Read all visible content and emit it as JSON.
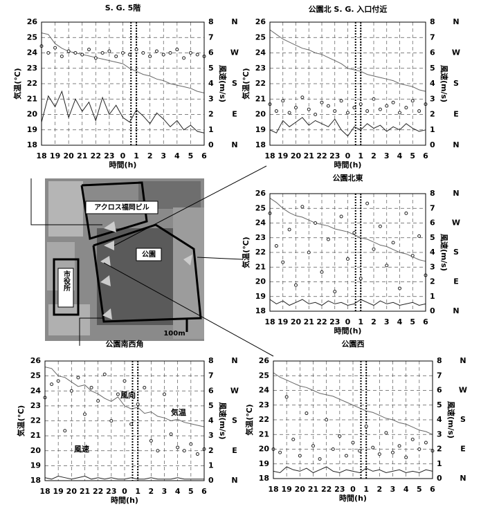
{
  "chart_data": [
    {
      "type": "line",
      "title": "S. G. 5階",
      "xlabel": "時間(h)",
      "ylabel": "気温(℃)",
      "y2label": "風速(m/s)",
      "x": [
        18,
        18.5,
        19,
        19.5,
        20,
        20.5,
        21,
        21.5,
        22,
        22.5,
        23,
        23.5,
        24,
        24.5,
        25,
        25.5,
        26,
        26.5,
        27,
        27.5,
        28,
        28.5,
        29,
        29.5,
        30
      ],
      "xlim": [
        18,
        30
      ],
      "xticks": [
        18,
        19,
        20,
        21,
        22,
        23,
        {
          "value": 24,
          "label": "0"
        },
        {
          "value": 25,
          "label": "1"
        },
        {
          "value": 26,
          "label": "2"
        },
        {
          "value": 27,
          "label": "3"
        },
        {
          "value": 28,
          "label": "4"
        },
        {
          "value": 29,
          "label": "5"
        },
        {
          "value": 30,
          "label": "6"
        }
      ],
      "ylim": [
        18,
        26
      ],
      "yticks": [
        18,
        19,
        20,
        21,
        22,
        23,
        24,
        25,
        26
      ],
      "y2lim": [
        0,
        8
      ],
      "y2ticks": [
        0,
        1,
        2,
        3,
        4,
        5,
        6,
        7,
        8
      ],
      "y3lim": [
        0,
        360
      ],
      "y3ticks": [
        {
          "value": 0,
          "label": "N"
        },
        {
          "value": 90,
          "label": "E"
        },
        {
          "value": 180,
          "label": "S"
        },
        {
          "value": 270,
          "label": "W"
        },
        {
          "value": 360,
          "label": "N"
        }
      ],
      "grid": true,
      "highlight_x": [
        24.6,
        25.0
      ],
      "series": [
        {
          "type": "line",
          "color": "#666666",
          "values": [
            25.3,
            25.2,
            24.6,
            24.3,
            24.1,
            24.0,
            23.9,
            23.8,
            23.7,
            23.6,
            23.5,
            23.4,
            23.3,
            23.0,
            22.8,
            22.6,
            22.5,
            22.3,
            22.2,
            22.0,
            21.9,
            21.8,
            21.7,
            21.5,
            21.4
          ]
        },
        {
          "type": "line",
          "axis": "y2",
          "color": "#222222",
          "values": [
            1.5,
            3.2,
            2.5,
            3.5,
            1.8,
            3.0,
            2.2,
            2.8,
            1.6,
            3.1,
            2.0,
            2.6,
            1.8,
            1.5,
            2.3,
            1.9,
            1.4,
            2.1,
            1.7,
            1.2,
            1.6,
            1.0,
            1.3,
            0.9,
            0.8
          ]
        },
        {
          "type": "scatter",
          "axis": "y3",
          "color": "#222222",
          "values": [
            290,
            270,
            285,
            260,
            275,
            270,
            265,
            280,
            255,
            270,
            275,
            260,
            270,
            265,
            280,
            270,
            260,
            275,
            265,
            270,
            280,
            255,
            270,
            265,
            260
          ]
        }
      ]
    },
    {
      "type": "line",
      "title": "公園北 S. G. 入口付近",
      "xlabel": "時間(h)",
      "ylabel": "気温(℃)",
      "y2label": "風速(m/s)",
      "x": [
        18,
        18.5,
        19,
        19.5,
        20,
        20.5,
        21,
        21.5,
        22,
        22.5,
        23,
        23.5,
        24,
        24.5,
        25,
        25.5,
        26,
        26.5,
        27,
        27.5,
        28,
        28.5,
        29,
        29.5,
        30
      ],
      "xlim": [
        18,
        30
      ],
      "xticks": [
        18,
        19,
        20,
        21,
        22,
        23,
        {
          "value": 24,
          "label": "0"
        },
        {
          "value": 25,
          "label": "1"
        },
        {
          "value": 26,
          "label": "2"
        },
        {
          "value": 27,
          "label": "3"
        },
        {
          "value": 28,
          "label": "4"
        },
        {
          "value": 29,
          "label": "5"
        },
        {
          "value": 30,
          "label": "6"
        }
      ],
      "ylim": [
        18,
        26
      ],
      "yticks": [
        18,
        19,
        20,
        21,
        22,
        23,
        24,
        25,
        26
      ],
      "y2lim": [
        0,
        8
      ],
      "y2ticks": [
        0,
        1,
        2,
        3,
        4,
        5,
        6,
        7,
        8
      ],
      "y3lim": [
        0,
        360
      ],
      "y3ticks": [
        {
          "value": 0,
          "label": "N"
        },
        {
          "value": 90,
          "label": "E"
        },
        {
          "value": 180,
          "label": "S"
        },
        {
          "value": 270,
          "label": "W"
        },
        {
          "value": 360,
          "label": "N"
        }
      ],
      "grid": true,
      "highlight_x": [
        24.6,
        25.0
      ],
      "series": [
        {
          "type": "line",
          "color": "#666666",
          "values": [
            25.5,
            25.2,
            24.9,
            24.7,
            24.5,
            24.3,
            24.2,
            24.0,
            23.9,
            23.7,
            23.5,
            23.3,
            23.0,
            22.9,
            22.8,
            22.6,
            22.5,
            22.4,
            22.3,
            22.2,
            22.0,
            21.9,
            21.8,
            21.6,
            21.5
          ]
        },
        {
          "type": "line",
          "axis": "y2",
          "color": "#222222",
          "values": [
            1.0,
            0.8,
            1.6,
            1.2,
            1.5,
            1.8,
            1.3,
            1.6,
            1.4,
            1.2,
            1.7,
            1.0,
            0.6,
            1.2,
            1.0,
            1.4,
            1.1,
            1.3,
            0.9,
            1.2,
            1.0,
            1.4,
            1.1,
            0.9,
            1.0
          ]
        },
        {
          "type": "scatter",
          "axis": "y3",
          "color": "#222222",
          "values": [
            120,
            100,
            130,
            95,
            110,
            140,
            105,
            90,
            125,
            115,
            100,
            130,
            95,
            110,
            120,
            100,
            135,
            105,
            115,
            125,
            95,
            110,
            130,
            100,
            120
          ]
        }
      ]
    },
    {
      "type": "line",
      "title": "公園北東",
      "xlabel": "時間(h)",
      "ylabel": "気温(℃)",
      "y2label": "風速(m/s)",
      "x": [
        18,
        18.5,
        19,
        19.5,
        20,
        20.5,
        21,
        21.5,
        22,
        22.5,
        23,
        23.5,
        24,
        24.5,
        25,
        25.5,
        26,
        26.5,
        27,
        27.5,
        28,
        28.5,
        29,
        29.5,
        30
      ],
      "xlim": [
        18,
        30
      ],
      "xticks": [
        18,
        19,
        20,
        21,
        22,
        23,
        {
          "value": 24,
          "label": "0"
        },
        {
          "value": 25,
          "label": "1"
        },
        {
          "value": 26,
          "label": "2"
        },
        {
          "value": 27,
          "label": "3"
        },
        {
          "value": 28,
          "label": "4"
        },
        {
          "value": 29,
          "label": "5"
        },
        {
          "value": 30,
          "label": "6"
        }
      ],
      "ylim": [
        18,
        26
      ],
      "yticks": [
        18,
        19,
        20,
        21,
        22,
        23,
        24,
        25,
        26
      ],
      "y2lim": [
        0,
        8
      ],
      "y2ticks": [
        0,
        1,
        2,
        3,
        4,
        5,
        6,
        7,
        8
      ],
      "y3lim": [
        0,
        360
      ],
      "y3ticks": [
        {
          "value": 0,
          "label": "N"
        },
        {
          "value": 90,
          "label": "E"
        },
        {
          "value": 180,
          "label": "S"
        },
        {
          "value": 270,
          "label": "W"
        },
        {
          "value": 360,
          "label": "N"
        }
      ],
      "grid": true,
      "highlight_x": [
        24.6,
        25.0
      ],
      "series": [
        {
          "type": "line",
          "color": "#666666",
          "values": [
            25.7,
            25.4,
            25.0,
            24.7,
            24.5,
            24.4,
            24.2,
            24.0,
            23.9,
            23.8,
            23.6,
            23.5,
            23.4,
            23.2,
            23.0,
            22.9,
            22.7,
            22.5,
            22.4,
            22.2,
            22.0,
            21.9,
            21.7,
            21.5,
            21.4
          ]
        },
        {
          "type": "line",
          "axis": "y2",
          "color": "#222222",
          "values": [
            0.8,
            0.5,
            0.7,
            0.4,
            0.6,
            0.8,
            0.5,
            0.6,
            0.4,
            0.7,
            0.5,
            0.6,
            0.4,
            0.5,
            0.8,
            0.6,
            0.4,
            0.7,
            0.5,
            0.6,
            0.4,
            0.5,
            0.6,
            0.4,
            0.5
          ]
        },
        {
          "type": "scatter",
          "axis": "y3",
          "color": "#222222",
          "values": [
            300,
            200,
            150,
            250,
            80,
            320,
            180,
            270,
            120,
            220,
            60,
            290,
            160,
            240,
            100,
            330,
            190,
            260,
            140,
            210,
            70,
            300,
            170,
            230,
            110
          ]
        }
      ]
    },
    {
      "type": "line",
      "title": "公園南西角",
      "xlabel": "時間(h)",
      "ylabel": "気温(℃)",
      "y2label": "風速(m/s)",
      "annotations": [
        "風向",
        "気温",
        "風速"
      ],
      "x": [
        18,
        18.5,
        19,
        19.5,
        20,
        20.5,
        21,
        21.5,
        22,
        22.5,
        23,
        23.5,
        24,
        24.5,
        25,
        25.5,
        26,
        26.5,
        27,
        27.5,
        28,
        28.5,
        29,
        29.5,
        30
      ],
      "xlim": [
        18,
        30
      ],
      "xticks": [
        18,
        19,
        20,
        21,
        22,
        23,
        {
          "value": 24,
          "label": "0"
        },
        {
          "value": 25,
          "label": "1"
        },
        {
          "value": 26,
          "label": "2"
        },
        {
          "value": 27,
          "label": "3"
        },
        {
          "value": 28,
          "label": "4"
        },
        {
          "value": 29,
          "label": "5"
        },
        {
          "value": 30,
          "label": "6"
        }
      ],
      "ylim": [
        18,
        26
      ],
      "yticks": [
        18,
        19,
        20,
        21,
        22,
        23,
        24,
        25,
        26
      ],
      "y2lim": [
        0,
        8
      ],
      "y2ticks": [
        0,
        1,
        2,
        3,
        4,
        5,
        6,
        7,
        8
      ],
      "y3lim": [
        0,
        360
      ],
      "y3ticks": [
        {
          "value": 0,
          "label": "N"
        },
        {
          "value": 90,
          "label": "E"
        },
        {
          "value": 180,
          "label": "S"
        },
        {
          "value": 270,
          "label": "W"
        },
        {
          "value": 360,
          "label": "N"
        }
      ],
      "grid": true,
      "highlight_x": [
        24.6,
        25.0
      ],
      "series": [
        {
          "type": "line",
          "color": "#666666",
          "values": [
            25.6,
            25.5,
            25.0,
            24.9,
            24.6,
            24.3,
            24.4,
            24.0,
            23.8,
            23.5,
            23.3,
            23.6,
            23.0,
            22.8,
            22.9,
            22.5,
            22.6,
            22.3,
            22.2,
            22.0,
            22.1,
            21.9,
            21.8,
            21.7,
            21.6
          ]
        },
        {
          "type": "line",
          "axis": "y2",
          "color": "#222222",
          "values": [
            0.2,
            0.1,
            0.3,
            0.2,
            0.1,
            0.2,
            0.3,
            0.1,
            0.2,
            0.1,
            0.2,
            0.1,
            0.1,
            0.2,
            0.1,
            0.1,
            0.2,
            0.1,
            0.1,
            0.1,
            0.2,
            0.1,
            0.1,
            0.1,
            0.1
          ]
        },
        {
          "type": "scatter",
          "axis": "y3",
          "color": "#222222",
          "values": [
            250,
            290,
            300,
            150,
            270,
            310,
            200,
            280,
            240,
            320,
            180,
            260,
            300,
            170,
            230,
            280,
            120,
            90,
            260,
            140,
            100,
            90,
            110,
            80,
            95
          ]
        }
      ]
    },
    {
      "type": "line",
      "title": "公園西",
      "xlabel": "時間(h)",
      "ylabel": "気温(℃)",
      "y2label": "風速(m/s)",
      "x": [
        18,
        18.5,
        19,
        19.5,
        20,
        20.5,
        21,
        21.5,
        22,
        22.5,
        23,
        23.5,
        24,
        24.5,
        25,
        25.5,
        26,
        26.5,
        27,
        27.5,
        28,
        28.5,
        29,
        29.5,
        30
      ],
      "xlim": [
        18,
        30
      ],
      "xticks": [
        18,
        19,
        20,
        21,
        22,
        23,
        {
          "value": 24,
          "label": "0"
        },
        {
          "value": 25,
          "label": "1"
        },
        {
          "value": 26,
          "label": "2"
        },
        {
          "value": 27,
          "label": "3"
        },
        {
          "value": 28,
          "label": "4"
        },
        {
          "value": 29,
          "label": "5"
        },
        {
          "value": 30,
          "label": "6"
        }
      ],
      "ylim": [
        18,
        26
      ],
      "yticks": [
        18,
        19,
        20,
        21,
        22,
        23,
        24,
        25,
        26
      ],
      "y2lim": [
        0,
        8
      ],
      "y2ticks": [
        0,
        1,
        2,
        3,
        4,
        5,
        6,
        7,
        8
      ],
      "y3lim": [
        0,
        360
      ],
      "y3ticks": [
        {
          "value": 0,
          "label": "N"
        },
        {
          "value": 90,
          "label": "E"
        },
        {
          "value": 180,
          "label": "S"
        },
        {
          "value": 270,
          "label": "W"
        },
        {
          "value": 360,
          "label": "N"
        }
      ],
      "grid": true,
      "highlight_x": [
        24.6,
        25.0
      ],
      "series": [
        {
          "type": "line",
          "color": "#666666",
          "values": [
            25.2,
            24.9,
            24.7,
            24.5,
            24.3,
            24.2,
            24.0,
            23.8,
            23.7,
            23.6,
            23.4,
            23.2,
            23.0,
            22.8,
            22.6,
            22.5,
            22.3,
            22.1,
            22.0,
            21.8,
            21.7,
            21.5,
            21.3,
            21.2,
            21.0
          ]
        },
        {
          "type": "line",
          "axis": "y2",
          "color": "#222222",
          "values": [
            0.5,
            0.4,
            0.8,
            0.6,
            0.5,
            0.7,
            0.4,
            0.6,
            0.8,
            0.5,
            0.4,
            0.6,
            0.5,
            0.4,
            0.7,
            0.5,
            0.6,
            0.4,
            0.5,
            0.6,
            0.4,
            0.5,
            0.4,
            0.6,
            0.5
          ]
        },
        {
          "type": "scatter",
          "axis": "y3",
          "color": "#222222",
          "values": [
            90,
            80,
            250,
            120,
            70,
            200,
            100,
            60,
            180,
            90,
            130,
            70,
            110,
            85,
            160,
            95,
            75,
            140,
            80,
            100,
            65,
            120,
            90,
            110,
            85
          ]
        }
      ]
    }
  ],
  "map": {
    "labels": [
      "アクロス福岡ビル",
      "公園",
      "市役所",
      "100m"
    ]
  }
}
